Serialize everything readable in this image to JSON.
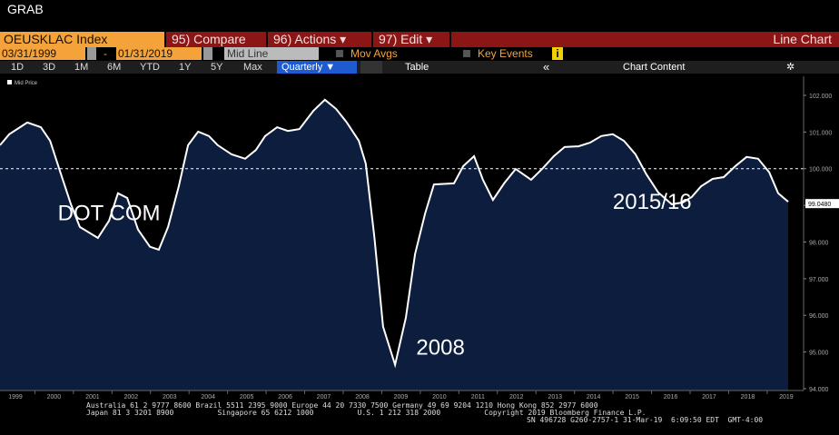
{
  "header": {
    "title": "GRAB"
  },
  "toolbar": {
    "security": "OEUSKLAC Index",
    "compare": "95) Compare",
    "actions": "96) Actions ▾",
    "edit": "97) Edit ▾",
    "view": "Line Chart",
    "start_date": "03/31/1999",
    "date_sep": "-",
    "end_date": "01/31/2019",
    "line_mode": "Mid Line",
    "mov_avgs": "Mov Avgs",
    "key_events": "Key Events",
    "info": "i",
    "ranges": [
      "1D",
      "3D",
      "1M",
      "6M",
      "YTD",
      "1Y",
      "5Y",
      "Max"
    ],
    "frequency": "Quarterly ▼",
    "table": "Table",
    "collapse": "«",
    "chart_content": "Chart Content"
  },
  "chart_data": {
    "type": "area",
    "legend": "Mid Price",
    "color": "#ffffff",
    "fill": "#0c1d3d",
    "x": [
      1998.6,
      1998.84,
      1999.31,
      1999.66,
      1999.9,
      2000.13,
      2000.44,
      2000.67,
      2001.14,
      2001.43,
      2001.66,
      2001.9,
      2002.18,
      2002.49,
      2002.72,
      2002.96,
      2003.24,
      2003.48,
      2003.74,
      2004.02,
      2004.25,
      2004.61,
      2004.96,
      2005.24,
      2005.48,
      2005.79,
      2006.07,
      2006.37,
      2006.73,
      2007.03,
      2007.32,
      2007.6,
      2007.91,
      2008.09,
      2008.31,
      2008.54,
      2008.85,
      2009.13,
      2009.37,
      2009.63,
      2009.86,
      2010.38,
      2010.62,
      2010.9,
      2011.13,
      2011.39,
      2011.68,
      2011.98,
      2012.38,
      2012.69,
      2012.97,
      2013.25,
      2013.61,
      2013.91,
      2014.2,
      2014.5,
      2014.79,
      2015.09,
      2015.37,
      2015.68,
      2016.03,
      2016.32,
      2016.55,
      2016.79,
      2017.09,
      2017.38,
      2017.68,
      2017.97,
      2018.27,
      2018.56,
      2018.79,
      2019.05
    ],
    "values": [
      100.64,
      100.94,
      101.26,
      101.13,
      100.76,
      100.02,
      99.03,
      98.41,
      98.11,
      98.58,
      99.33,
      99.2,
      98.34,
      97.87,
      97.79,
      98.41,
      99.52,
      100.64,
      101.01,
      100.89,
      100.64,
      100.39,
      100.27,
      100.51,
      100.89,
      101.13,
      101.03,
      101.08,
      101.58,
      101.88,
      101.63,
      101.26,
      100.76,
      100.14,
      98.16,
      95.69,
      94.65,
      95.94,
      97.67,
      98.78,
      99.57,
      99.6,
      100.07,
      100.34,
      99.7,
      99.15,
      99.6,
      99.99,
      99.7,
      100.02,
      100.34,
      100.59,
      100.61,
      100.71,
      100.89,
      100.94,
      100.76,
      100.39,
      99.85,
      99.35,
      99.03,
      99.08,
      99.23,
      99.52,
      99.72,
      99.77,
      100.07,
      100.32,
      100.27,
      99.9,
      99.33,
      99.1
    ],
    "xlim": [
      1998.6,
      2019.45
    ],
    "xticks": [
      1999,
      2000,
      2001,
      2002,
      2003,
      2004,
      2005,
      2006,
      2007,
      2008,
      2009,
      2010,
      2011,
      2012,
      2013,
      2014,
      2015,
      2016,
      2017,
      2018,
      2019
    ],
    "ylim": [
      93.95,
      102.52
    ],
    "yticks": [
      {
        "value": 94,
        "label": "94.000"
      },
      {
        "value": 95,
        "label": "95.000"
      },
      {
        "value": 96,
        "label": "96.000"
      },
      {
        "value": 97,
        "label": "97.000"
      },
      {
        "value": 98,
        "label": "98.000"
      },
      {
        "value": 99,
        "label": "99.000"
      },
      {
        "value": 100,
        "label": "100.000"
      },
      {
        "value": 101,
        "label": "101.000"
      },
      {
        "value": 102,
        "label": "102.000"
      }
    ],
    "reference_line": 100,
    "last_value": {
      "value": 99.048,
      "label": "99.0480"
    },
    "annotations": [
      {
        "text": "DOT COM",
        "x": 2000.1,
        "y": 98.6
      },
      {
        "text": "2008",
        "x": 2009.4,
        "y": 94.93
      },
      {
        "text": "2015/16",
        "x": 2014.5,
        "y": 98.9
      }
    ]
  },
  "footer": {
    "lines": [
      "Australia 61 2 9777 8600 Brazil 5511 2395 9000 Europe 44 20 7330 7500 Germany 49 69 9204 1210 Hong Kong 852 2977 6000",
      "Japan 81 3 3201 8900          Singapore 65 6212 1000          U.S. 1 212 318 2000          Copyright 2019 Bloomberg Finance L.P."
    ],
    "session": "SN 496728 G260-2757-1 31-Mar-19  6:09:50 EDT  GMT-4:00"
  }
}
